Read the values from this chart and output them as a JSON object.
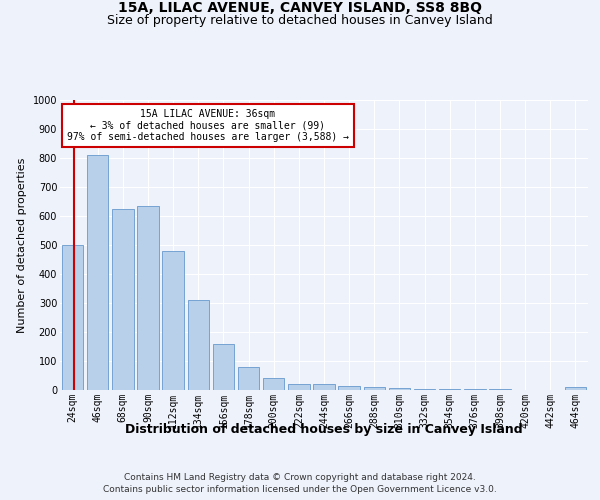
{
  "title": "15A, LILAC AVENUE, CANVEY ISLAND, SS8 8BQ",
  "subtitle": "Size of property relative to detached houses in Canvey Island",
  "xlabel": "Distribution of detached houses by size in Canvey Island",
  "ylabel": "Number of detached properties",
  "categories": [
    "24sqm",
    "46sqm",
    "68sqm",
    "90sqm",
    "112sqm",
    "134sqm",
    "156sqm",
    "178sqm",
    "200sqm",
    "222sqm",
    "244sqm",
    "266sqm",
    "288sqm",
    "310sqm",
    "332sqm",
    "354sqm",
    "376sqm",
    "398sqm",
    "420sqm",
    "442sqm",
    "464sqm"
  ],
  "values": [
    500,
    810,
    625,
    635,
    480,
    310,
    160,
    80,
    42,
    22,
    22,
    15,
    10,
    8,
    5,
    3,
    2,
    2,
    1,
    1,
    10
  ],
  "bar_color": "#b8d0ea",
  "bar_edge_color": "#6699cc",
  "marker_color": "#cc0000",
  "annotation_text": "15A LILAC AVENUE: 36sqm\n← 3% of detached houses are smaller (99)\n97% of semi-detached houses are larger (3,588) →",
  "annotation_box_color": "#ffffff",
  "annotation_box_edge": "#cc0000",
  "ylim": [
    0,
    1000
  ],
  "yticks": [
    0,
    100,
    200,
    300,
    400,
    500,
    600,
    700,
    800,
    900,
    1000
  ],
  "footer": "Contains HM Land Registry data © Crown copyright and database right 2024.\nContains public sector information licensed under the Open Government Licence v3.0.",
  "bg_color": "#eef2fb",
  "plot_bg_color": "#eef2fb",
  "grid_color": "#ffffff",
  "title_fontsize": 10,
  "subtitle_fontsize": 9,
  "xlabel_fontsize": 9,
  "ylabel_fontsize": 8,
  "tick_fontsize": 7,
  "footer_fontsize": 6.5
}
